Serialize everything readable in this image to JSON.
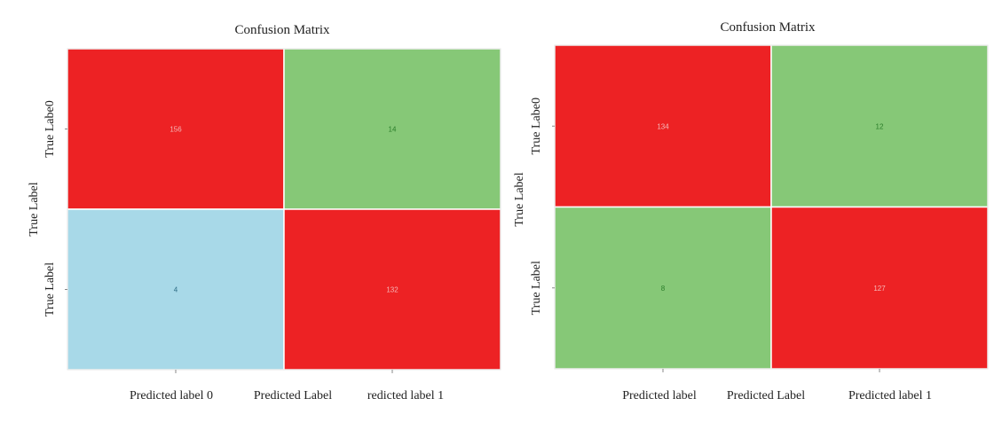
{
  "chart_data": [
    {
      "type": "heatmap",
      "title": "Confusion Matrix",
      "xlabel": "Predicted Label",
      "ylabel": "True Label",
      "xticks": [
        "Predicted label 0",
        "redicted label 1"
      ],
      "yticks": [
        "True Labe0",
        "True Label"
      ],
      "matrix": [
        [
          156,
          14
        ],
        [
          4,
          132
        ]
      ],
      "cell_colors": [
        [
          "#ed2224",
          "#86c877"
        ],
        [
          "#a8d9e8",
          "#ed2224"
        ]
      ],
      "value_colors": [
        [
          "#f5b8b8",
          "#2a7d2a"
        ],
        [
          "#2f6f86",
          "#f5b8b8"
        ]
      ]
    },
    {
      "type": "heatmap",
      "title": "Confusion Matrix",
      "xlabel": "Predicted Label",
      "ylabel": "True Label",
      "xticks": [
        "Predicted label",
        "Predicted label 1"
      ],
      "yticks": [
        "True Labe0",
        "True Label"
      ],
      "matrix": [
        [
          134,
          12
        ],
        [
          8,
          127
        ]
      ],
      "cell_colors": [
        [
          "#ed2224",
          "#86c877"
        ],
        [
          "#86c877",
          "#ed2224"
        ]
      ],
      "value_colors": [
        [
          "#f5b8b8",
          "#2a7d2a"
        ],
        [
          "#2a7d2a",
          "#f5b8b8"
        ]
      ]
    }
  ]
}
